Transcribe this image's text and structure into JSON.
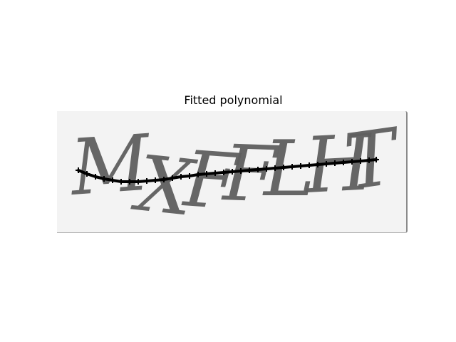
{
  "title": "Fitted polynomial",
  "captcha": {
    "text": "MXFFLHT",
    "letters": [
      "M",
      "X",
      "F",
      "F",
      "L",
      "H",
      "T"
    ]
  },
  "colors": {
    "background": "#ffffff",
    "captcha_bg": "#f3f3f3",
    "captcha_text": "#5f5f5f",
    "curve": "#000000"
  },
  "chart_data": {
    "type": "line",
    "title": "Fitted polynomial",
    "xlabel": "",
    "ylabel": "",
    "xlim": [
      0,
      492
    ],
    "ylim": [
      171,
      0
    ],
    "axes_visible": false,
    "grid": false,
    "series": [
      {
        "marker": "plus",
        "x": [
          30,
          42,
          54,
          66,
          78,
          90,
          102,
          114,
          126,
          138,
          150,
          162,
          174,
          186,
          198,
          210,
          222,
          234,
          246,
          258,
          270,
          282,
          294,
          306,
          318,
          330,
          342,
          354,
          366,
          378,
          390,
          402,
          414,
          426,
          438,
          448
        ],
        "y": [
          83,
          88,
          92,
          95,
          97,
          99,
          99,
          99,
          98,
          97,
          96,
          94,
          92,
          91,
          89,
          88,
          87,
          86,
          85,
          84,
          83,
          82,
          81,
          80,
          79,
          78,
          77,
          76,
          75,
          74,
          73,
          72,
          71,
          70,
          69,
          68
        ]
      }
    ]
  }
}
